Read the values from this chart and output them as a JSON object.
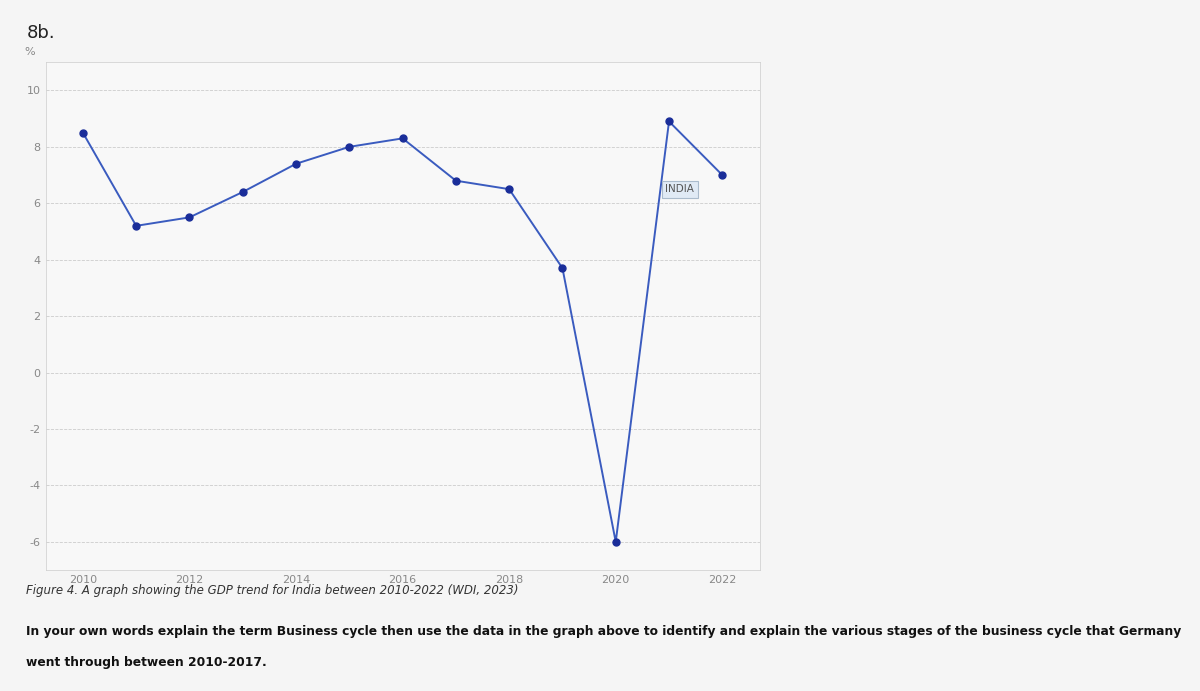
{
  "years": [
    2010,
    2011,
    2012,
    2013,
    2014,
    2015,
    2016,
    2017,
    2018,
    2019,
    2020,
    2021,
    2022
  ],
  "values": [
    8.5,
    5.2,
    5.5,
    6.4,
    7.4,
    8.0,
    8.3,
    6.8,
    6.5,
    3.7,
    -6.0,
    8.9,
    7.0
  ],
  "line_color": "#3a5bbf",
  "marker_color": "#1a2d99",
  "marker_size": 5,
  "line_width": 1.4,
  "ylim": [
    -7,
    11
  ],
  "yticks": [
    -6,
    -4,
    -2,
    0,
    2,
    4,
    6,
    8,
    10
  ],
  "xticks": [
    2010,
    2012,
    2014,
    2016,
    2018,
    2020,
    2022
  ],
  "legend_label": "INDIA",
  "grid_color": "#cccccc",
  "background_color": "#f5f5f5",
  "plot_bg_color": "#f8f8f8",
  "title_label": "8b.",
  "pct_label": "%",
  "caption": "Figure 4. A graph showing the GDP trend for India between 2010-2022 (WDI, 2023)",
  "question_line1": "In your own words explain the term Business cycle then use the data in the graph above to identify and explain the various stages of the business cycle that Germany",
  "question_line2": "went through between 2010-2017."
}
